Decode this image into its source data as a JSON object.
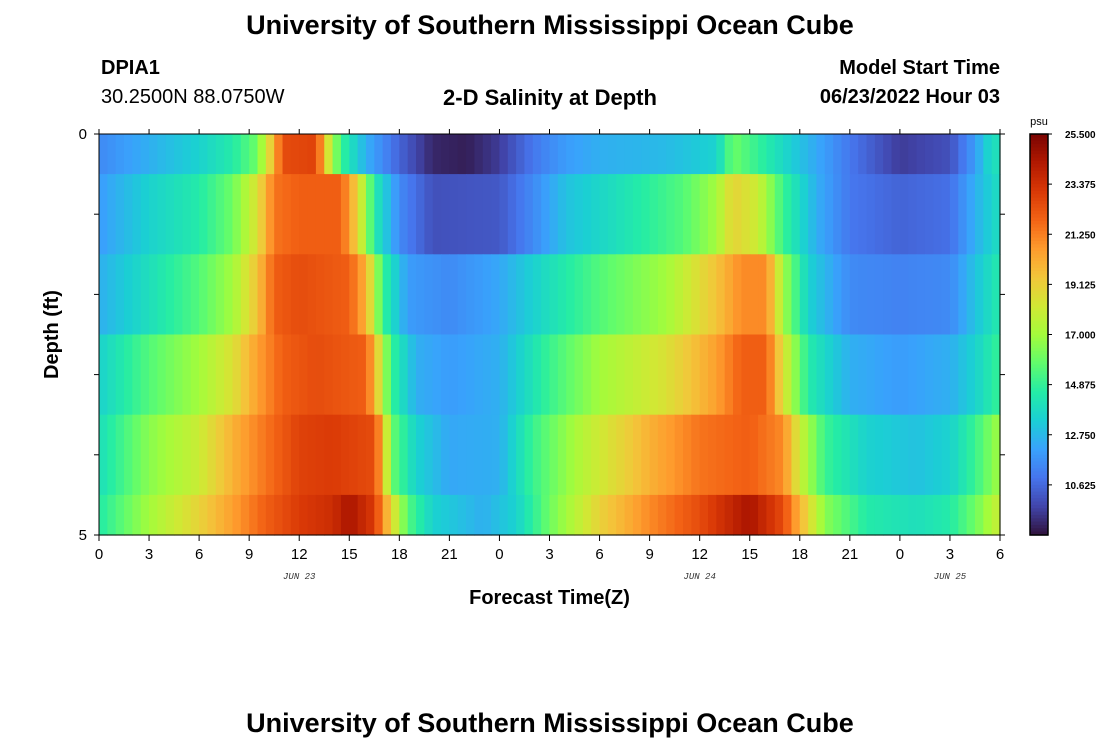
{
  "page": {
    "title": "University of Southern Mississippi Ocean Cube",
    "footer_title": "University of Southern Mississippi Ocean Cube",
    "station_id": "DPIA1",
    "station_coords": "30.2500N  88.0750W",
    "plot_title": "2-D Salinity at Depth",
    "model_start_label": "Model Start Time",
    "model_start_value": "06/23/2022 Hour 03"
  },
  "colors": {
    "colormap": [
      "#30123b",
      "#4145ab",
      "#4675ed",
      "#39a2fc",
      "#1bcfd4",
      "#24eca6",
      "#61fc6c",
      "#a4fc3b",
      "#d1e834",
      "#f3c63a",
      "#fe9b2d",
      "#f36315",
      "#d93806",
      "#b11901",
      "#7a0402"
    ]
  },
  "chart_data": {
    "type": "heatmap",
    "title": "2-D Salinity at Depth",
    "xlabel": "Forecast Time(Z)",
    "ylabel": "Depth (ft)",
    "colorbar_unit": "psu",
    "colorbar_ticks": [
      "25.500",
      "23.375",
      "21.250",
      "19.125",
      "17.000",
      "14.875",
      "12.750",
      "10.625"
    ],
    "vmin": 8.5,
    "vmax": 25.5,
    "x_tick_labels": [
      "0",
      "3",
      "6",
      "9",
      "12",
      "15",
      "18",
      "21",
      "0",
      "3",
      "6",
      "9",
      "12",
      "15",
      "18",
      "21",
      "0",
      "3",
      "6"
    ],
    "date_labels": [
      {
        "text": "JUN 23",
        "hour": 12
      },
      {
        "text": "JUN 24",
        "hour": 36
      },
      {
        "text": "JUN 25",
        "hour": 51
      }
    ],
    "y_tick_labels": [
      {
        "text": "0",
        "depth": 0
      },
      {
        "text": "5",
        "depth": 5
      }
    ],
    "y_range": [
      0,
      5
    ],
    "x_range_hours": [
      0,
      54
    ],
    "x_step_hours": 0.5,
    "layer_depths": [
      0,
      0.5,
      1.5,
      2.5,
      3.5,
      4.5,
      5
    ],
    "layers": [
      {
        "depth_range": [
          0,
          0.5
        ],
        "knots": [
          [
            0,
            11.5
          ],
          [
            3,
            12.5
          ],
          [
            6,
            13.5
          ],
          [
            8,
            14.5
          ],
          [
            9.5,
            16
          ],
          [
            10.5,
            20
          ],
          [
            11,
            22.5
          ],
          [
            13,
            22.8
          ],
          [
            13.8,
            18
          ],
          [
            14.5,
            15
          ],
          [
            16,
            12.5
          ],
          [
            18,
            10.5
          ],
          [
            20,
            9
          ],
          [
            22,
            8.8
          ],
          [
            24,
            9.5
          ],
          [
            26,
            11
          ],
          [
            28,
            12
          ],
          [
            30,
            12.5
          ],
          [
            34,
            12.8
          ],
          [
            37,
            13.5
          ],
          [
            38,
            16
          ],
          [
            40,
            14.5
          ],
          [
            42,
            13
          ],
          [
            45,
            11
          ],
          [
            48,
            9.5
          ],
          [
            51,
            10
          ],
          [
            52.5,
            12
          ],
          [
            53.5,
            14
          ],
          [
            54,
            14
          ]
        ]
      },
      {
        "depth_range": [
          0.5,
          1.5
        ],
        "knots": [
          [
            0,
            12
          ],
          [
            3,
            13.5
          ],
          [
            6,
            14.5
          ],
          [
            8,
            16
          ],
          [
            9.5,
            18.5
          ],
          [
            10.5,
            21.5
          ],
          [
            12,
            22
          ],
          [
            14.5,
            22
          ],
          [
            15.5,
            19
          ],
          [
            16.5,
            14.5
          ],
          [
            18,
            11.5
          ],
          [
            20,
            10
          ],
          [
            24,
            10.2
          ],
          [
            26,
            11.5
          ],
          [
            28,
            13
          ],
          [
            31,
            14
          ],
          [
            35,
            15.5
          ],
          [
            37,
            17
          ],
          [
            38,
            19
          ],
          [
            39.5,
            18
          ],
          [
            41,
            15
          ],
          [
            43,
            12.5
          ],
          [
            45,
            11
          ],
          [
            48,
            10.5
          ],
          [
            51,
            10.8
          ],
          [
            52.5,
            12.5
          ],
          [
            54,
            14
          ]
        ]
      },
      {
        "depth_range": [
          1.5,
          2.5
        ],
        "knots": [
          [
            0,
            12.5
          ],
          [
            3,
            14
          ],
          [
            6,
            15.5
          ],
          [
            8,
            17
          ],
          [
            9.5,
            19.5
          ],
          [
            10.5,
            22
          ],
          [
            12,
            22.5
          ],
          [
            15,
            22
          ],
          [
            16,
            20
          ],
          [
            17,
            15
          ],
          [
            18.5,
            12
          ],
          [
            21,
            11.5
          ],
          [
            24,
            12.3
          ],
          [
            27,
            14
          ],
          [
            30,
            15.5
          ],
          [
            34,
            17
          ],
          [
            37,
            19.5
          ],
          [
            38.5,
            21
          ],
          [
            40,
            21
          ],
          [
            41,
            17
          ],
          [
            42.5,
            13.5
          ],
          [
            45,
            11.5
          ],
          [
            48,
            11.3
          ],
          [
            51,
            11.5
          ],
          [
            52.5,
            13
          ],
          [
            54,
            14.5
          ]
        ]
      },
      {
        "depth_range": [
          2.5,
          3.5
        ],
        "knots": [
          [
            0,
            13.5
          ],
          [
            3,
            15.5
          ],
          [
            6,
            17
          ],
          [
            8,
            18.5
          ],
          [
            9.5,
            20.5
          ],
          [
            11,
            22
          ],
          [
            13,
            22.5
          ],
          [
            16,
            22
          ],
          [
            16.5,
            20
          ],
          [
            17.5,
            15
          ],
          [
            19,
            12.5
          ],
          [
            21,
            12
          ],
          [
            24,
            12.5
          ],
          [
            27,
            15
          ],
          [
            30,
            17
          ],
          [
            34,
            18.5
          ],
          [
            37,
            20.5
          ],
          [
            38.5,
            22
          ],
          [
            40,
            22
          ],
          [
            41,
            18.5
          ],
          [
            42.5,
            14.5
          ],
          [
            45,
            12.5
          ],
          [
            48,
            12
          ],
          [
            51,
            12.5
          ],
          [
            52.5,
            13.5
          ],
          [
            54,
            15
          ]
        ]
      },
      {
        "depth_range": [
          3.5,
          4.5
        ],
        "knots": [
          [
            0,
            14
          ],
          [
            3,
            16.5
          ],
          [
            6,
            18
          ],
          [
            8,
            20
          ],
          [
            10,
            21.5
          ],
          [
            12,
            22.8
          ],
          [
            14,
            23
          ],
          [
            16.5,
            22.5
          ],
          [
            17,
            20
          ],
          [
            17.5,
            16
          ],
          [
            19,
            13.5
          ],
          [
            21,
            12.3
          ],
          [
            24,
            12.5
          ],
          [
            26,
            15
          ],
          [
            29,
            17.5
          ],
          [
            33,
            20
          ],
          [
            36,
            21.5
          ],
          [
            39,
            22
          ],
          [
            41,
            21
          ],
          [
            42,
            18
          ],
          [
            43.5,
            15
          ],
          [
            46,
            13.5
          ],
          [
            49,
            13
          ],
          [
            51,
            13.5
          ],
          [
            52.5,
            15
          ],
          [
            54,
            17
          ]
        ]
      },
      {
        "depth_range": [
          4.5,
          5
        ],
        "knots": [
          [
            0,
            14.5
          ],
          [
            3,
            17
          ],
          [
            6,
            19
          ],
          [
            8,
            20.5
          ],
          [
            10,
            22
          ],
          [
            12,
            23
          ],
          [
            14,
            23.5
          ],
          [
            15,
            24.5
          ],
          [
            16.5,
            23
          ],
          [
            17.5,
            19
          ],
          [
            18.5,
            15.5
          ],
          [
            20,
            13.5
          ],
          [
            23,
            12.5
          ],
          [
            25,
            13.5
          ],
          [
            27,
            16
          ],
          [
            30,
            19
          ],
          [
            33,
            21
          ],
          [
            36,
            22.5
          ],
          [
            39,
            24.5
          ],
          [
            41,
            22.5
          ],
          [
            42,
            20
          ],
          [
            43.5,
            16.5
          ],
          [
            46,
            14.5
          ],
          [
            49,
            14
          ],
          [
            51,
            14.5
          ],
          [
            52.5,
            16
          ],
          [
            54,
            18
          ]
        ]
      }
    ]
  }
}
